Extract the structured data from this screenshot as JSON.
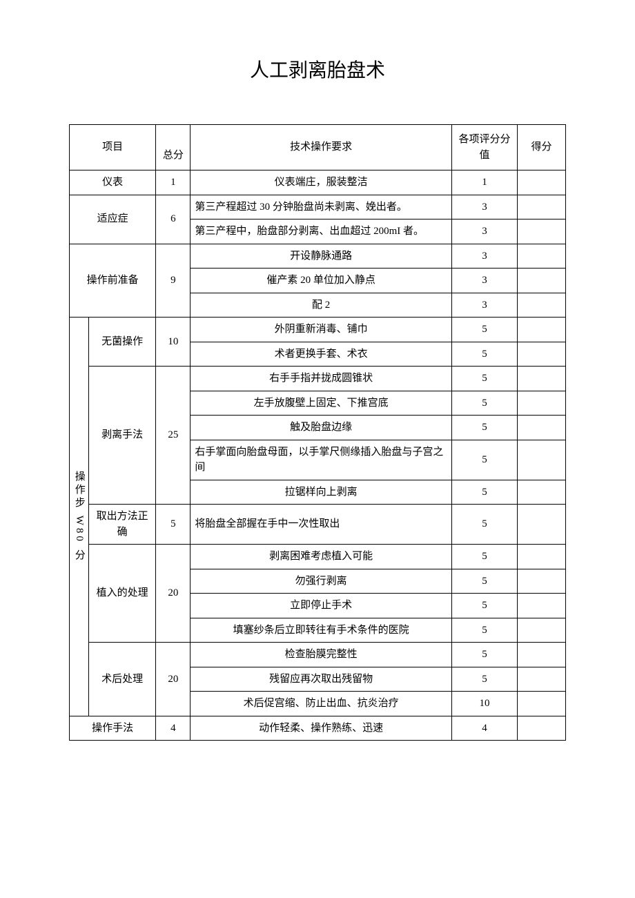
{
  "title": "人工剥离胎盘术",
  "headers": {
    "project": "项目",
    "total": "总分",
    "requirement": "技术操作要求",
    "itemScore": "各项评分分值",
    "score": "得分"
  },
  "rows": {
    "appearance": {
      "label": "仪表",
      "total": "1",
      "req": "仪表端庄，服装整洁",
      "score": "1"
    },
    "indication": {
      "label": "适应症",
      "total": "6",
      "r1": {
        "req": "第三产程超过 30 分钟胎盘尚未剥离、娩出者。",
        "score": "3"
      },
      "r2": {
        "req": "第三产程中，胎盘部分剥离、出血超过 200mI 者。",
        "score": "3"
      }
    },
    "preop": {
      "label": "操作前准备",
      "total": "9",
      "r1": {
        "req": "开设静脉通路",
        "score": "3"
      },
      "r2": {
        "req": "催产素 20 单位加入静点",
        "score": "3"
      },
      "r3": {
        "req": "配 2",
        "score": "3"
      }
    },
    "steps": {
      "label": "操作步 W80 分",
      "sterile": {
        "label": "无菌操作",
        "total": "10",
        "r1": {
          "req": "外阴重新消毒、铺巾",
          "score": "5"
        },
        "r2": {
          "req": "术者更换手套、术衣",
          "score": "5"
        }
      },
      "separation": {
        "label": "剥离手法",
        "total": "25",
        "r1": {
          "req": "右手手指并拢成圆锥状",
          "score": "5"
        },
        "r2": {
          "req": "左手放腹壁上固定、下推宫底",
          "score": "5"
        },
        "r3": {
          "req": "触及胎盘边缘",
          "score": "5"
        },
        "r4": {
          "req": "右手掌面向胎盘母面，以手掌尺侧缘插入胎盘与子宫之间",
          "score": "5"
        },
        "r5": {
          "req": "拉锯样向上剥离",
          "score": "5"
        }
      },
      "extraction": {
        "label": "取出方法正确",
        "total": "5",
        "r1": {
          "req": "将胎盘全部握在手中一次性取出",
          "score": "5"
        }
      },
      "implant": {
        "label": "植入的处理",
        "total": "20",
        "r1": {
          "req": "剥离困难考虑植入可能",
          "score": "5"
        },
        "r2": {
          "req": "勿强行剥离",
          "score": "5"
        },
        "r3": {
          "req": "立即停止手术",
          "score": "5"
        },
        "r4": {
          "req": "填塞纱条后立即转往有手术条件的医院",
          "score": "5"
        }
      },
      "postop": {
        "label": "术后处理",
        "total": "20",
        "r1": {
          "req": "检查胎膜完整性",
          "score": "5"
        },
        "r2": {
          "req": "残留应再次取出残留物",
          "score": "5"
        },
        "r3": {
          "req": "术后促宫缩、防止出血、抗炎治疗",
          "score": "10"
        }
      }
    },
    "technique": {
      "label": "操作手法",
      "total": "4",
      "req": "动作轻柔、操作熟练、迅速",
      "score": "4"
    }
  }
}
